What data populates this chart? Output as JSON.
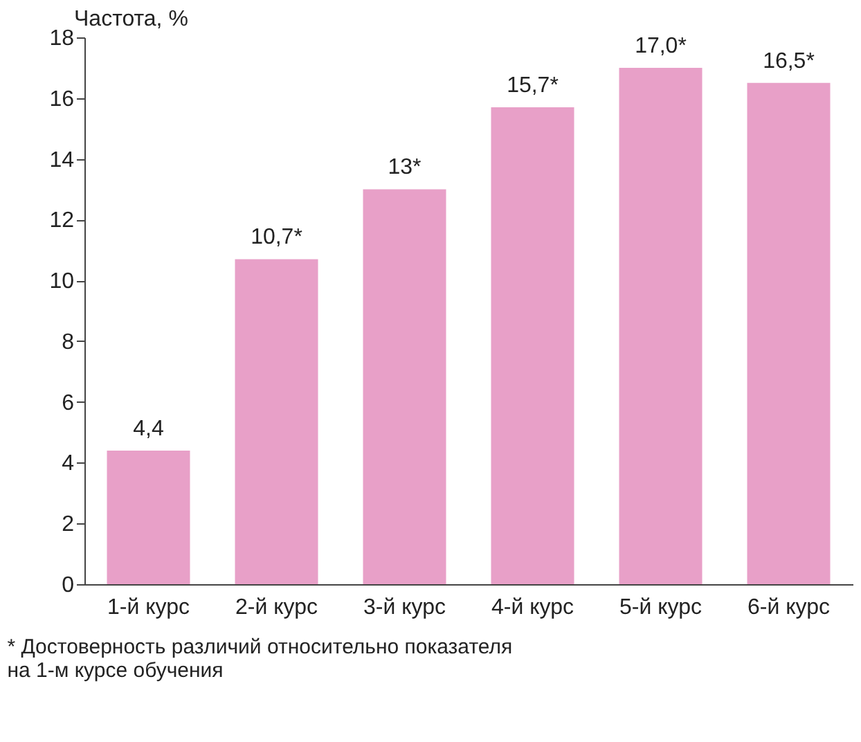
{
  "chart_data": {
    "type": "bar",
    "ylabel": "Частота, %",
    "categories": [
      "1-й курс",
      "2-й курс",
      "3-й курс",
      "4-й курс",
      "5-й курс",
      "6-й курс"
    ],
    "values": [
      4.4,
      10.7,
      13,
      15.7,
      17.0,
      16.5
    ],
    "value_labels": [
      "4,4",
      "10,7*",
      "13*",
      "15,7*",
      "17,0*",
      "16,5*"
    ],
    "color": "#e8a0c8",
    "ylim": [
      0,
      18
    ],
    "yticks": [
      0,
      2,
      4,
      6,
      8,
      10,
      12,
      14,
      16,
      18
    ],
    "grid": false,
    "annotations": [
      "* Достоверность различий относительно показателя на 1-м курсе обучения"
    ]
  }
}
